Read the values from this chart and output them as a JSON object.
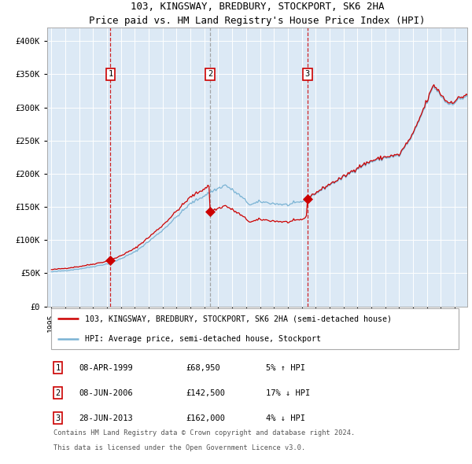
{
  "title": "103, KINGSWAY, BREDBURY, STOCKPORT, SK6 2HA",
  "subtitle": "Price paid vs. HM Land Registry's House Price Index (HPI)",
  "legend_line1": "103, KINGSWAY, BREDBURY, STOCKPORT, SK6 2HA (semi-detached house)",
  "legend_line2": "HPI: Average price, semi-detached house, Stockport",
  "annotation_rows": [
    [
      "1",
      "08-APR-1999",
      "£68,950",
      "5% ↑ HPI"
    ],
    [
      "2",
      "08-JUN-2006",
      "£142,500",
      "17% ↓ HPI"
    ],
    [
      "3",
      "28-JUN-2013",
      "£162,000",
      "4% ↓ HPI"
    ]
  ],
  "footer": [
    "Contains HM Land Registry data © Crown copyright and database right 2024.",
    "This data is licensed under the Open Government Licence v3.0."
  ],
  "hpi_color": "#7ab3d4",
  "price_color": "#cc0000",
  "sale_marker_color": "#cc0000",
  "vline_colors": [
    "#cc0000",
    "#999999",
    "#cc0000"
  ],
  "background_color": "#dce9f5",
  "ylim": [
    0,
    420000
  ],
  "yticks": [
    0,
    50000,
    100000,
    150000,
    200000,
    250000,
    300000,
    350000,
    400000
  ],
  "ytick_labels": [
    "£0",
    "£50K",
    "£100K",
    "£150K",
    "£200K",
    "£250K",
    "£300K",
    "£350K",
    "£400K"
  ],
  "xlim_start": 1994.7,
  "xlim_end": 2024.9,
  "sale_labels": [
    "1",
    "2",
    "3"
  ]
}
